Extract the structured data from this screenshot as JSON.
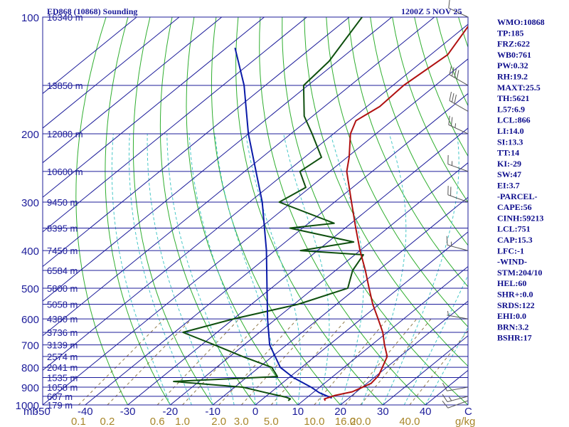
{
  "header": {
    "station": "ED868 (10868) Sounding",
    "time": "1200Z  5 NOV 25"
  },
  "indices": [
    "WMO:10868",
    "TP:185",
    "FRZ:622",
    "WB0:761",
    "PW:0.32",
    "RH:19.2",
    "MAXT:25.5",
    "TH:5621",
    "L57:6.9",
    "LCL:866",
    "LI:14.0",
    "SI:13.3",
    "TT:14",
    "KI:-29",
    "SW:47",
    "EI:3.7",
    "-PARCEL-",
    "CAPE:56",
    "CINH:59213",
    "LCL:751",
    "CAP:15.3",
    "LFC:-1",
    "-WIND-",
    "STM:204/10",
    "HEL:60",
    "SHR+:0.0",
    "SRDS:122",
    "EHI:0.0",
    "BRN:3.2",
    "BSHR:17"
  ],
  "colors": {
    "isobar": "#1c1c9a",
    "isotherm": "#1c1c9a",
    "dry_adiabat": "#2fae2f",
    "moist_adiabat": "#47c7c7",
    "mixing_ratio": "#8f7a4a",
    "temperature": "#b01010",
    "dewpoint": "#0e4f0e",
    "parcel": "#0a1aa8",
    "wind": "#555555",
    "label": "#1c1c9a",
    "mixing_label": "#a8862a"
  },
  "chart_data": {
    "type": "skew-t log-p sounding",
    "xlabel": "C",
    "unit_label": "mb",
    "mixing_unit": "g/kg",
    "xlim": [
      -50,
      50
    ],
    "ylim_hpa": [
      1000,
      100
    ],
    "temperature_ticks": [
      "-50",
      "-40",
      "-30",
      "-20",
      "-10",
      "0",
      "10",
      "20",
      "30",
      "40"
    ],
    "mixing_ticks": [
      "0.1",
      "0.2",
      "0.6",
      "1.0",
      "2.0",
      "3.0",
      "5.0",
      "10.0",
      "16.0",
      "20.0",
      "40.0"
    ],
    "pressure_levels": [
      {
        "p": 100,
        "label": "100",
        "height": "16340 m"
      },
      {
        "p": 150,
        "label": "",
        "height": "13850 m"
      },
      {
        "p": 200,
        "label": "200",
        "height": "12080 m"
      },
      {
        "p": 250,
        "label": "",
        "height": "10600 m"
      },
      {
        "p": 300,
        "label": "300",
        "height": "9450 m"
      },
      {
        "p": 350,
        "label": "",
        "height": "8395 m"
      },
      {
        "p": 400,
        "label": "400",
        "height": "7450 m"
      },
      {
        "p": 450,
        "label": "",
        "height": "6584 m"
      },
      {
        "p": 500,
        "label": "500",
        "height": "5800 m"
      },
      {
        "p": 550,
        "label": "",
        "height": "5058 m"
      },
      {
        "p": 600,
        "label": "600",
        "height": "4380 m"
      },
      {
        "p": 650,
        "label": "",
        "height": "3736 m"
      },
      {
        "p": 700,
        "label": "700",
        "height": "3139 m"
      },
      {
        "p": 750,
        "label": "",
        "height": "2574 m"
      },
      {
        "p": 800,
        "label": "800",
        "height": "2041 m"
      },
      {
        "p": 850,
        "label": "",
        "height": "1535 m"
      },
      {
        "p": 900,
        "label": "900",
        "height": "1058 m"
      },
      {
        "p": 950,
        "label": "",
        "height": "607 m"
      },
      {
        "p": 1000,
        "label": "1000",
        "height": "179 m"
      }
    ],
    "temperature": [
      {
        "p": 975,
        "t": 15.2
      },
      {
        "p": 965,
        "t": 14.5
      },
      {
        "p": 945,
        "t": 16.0
      },
      {
        "p": 925,
        "t": 19.0
      },
      {
        "p": 880,
        "t": 21.0
      },
      {
        "p": 840,
        "t": 20.5
      },
      {
        "p": 800,
        "t": 19.0
      },
      {
        "p": 750,
        "t": 17.0
      },
      {
        "p": 700,
        "t": 13.0
      },
      {
        "p": 650,
        "t": 9.0
      },
      {
        "p": 600,
        "t": 4.0
      },
      {
        "p": 550,
        "t": -1.5
      },
      {
        "p": 500,
        "t": -7.0
      },
      {
        "p": 450,
        "t": -13.0
      },
      {
        "p": 400,
        "t": -20.0
      },
      {
        "p": 350,
        "t": -27.5
      },
      {
        "p": 300,
        "t": -36.0
      },
      {
        "p": 250,
        "t": -46.0
      },
      {
        "p": 230,
        "t": -49.5
      },
      {
        "p": 200,
        "t": -56.0
      },
      {
        "p": 185,
        "t": -58.5
      },
      {
        "p": 170,
        "t": -57.0
      },
      {
        "p": 150,
        "t": -57.5
      },
      {
        "p": 125,
        "t": -56.0
      },
      {
        "p": 100,
        "t": -60.5
      }
    ],
    "dewpoint": [
      {
        "p": 975,
        "t": 6.5
      },
      {
        "p": 965,
        "t": 6.5
      },
      {
        "p": 955,
        "t": 5.0
      },
      {
        "p": 930,
        "t": -1.0
      },
      {
        "p": 900,
        "t": -8.0
      },
      {
        "p": 870,
        "t": -26.0
      },
      {
        "p": 845,
        "t": -3.0
      },
      {
        "p": 800,
        "t": -7.0
      },
      {
        "p": 750,
        "t": -17.0
      },
      {
        "p": 700,
        "t": -27.0
      },
      {
        "p": 650,
        "t": -38.0
      },
      {
        "p": 600,
        "t": -30.0
      },
      {
        "p": 550,
        "t": -19.0
      },
      {
        "p": 500,
        "t": -12.0
      },
      {
        "p": 450,
        "t": -16.0
      },
      {
        "p": 410,
        "t": -18.0
      },
      {
        "p": 400,
        "t": -34.0
      },
      {
        "p": 380,
        "t": -24.0
      },
      {
        "p": 350,
        "t": -43.0
      },
      {
        "p": 340,
        "t": -34.0
      },
      {
        "p": 300,
        "t": -53.0
      },
      {
        "p": 275,
        "t": -51.0
      },
      {
        "p": 250,
        "t": -57.0
      },
      {
        "p": 230,
        "t": -56.0
      },
      {
        "p": 200,
        "t": -65.0
      },
      {
        "p": 180,
        "t": -72.0
      },
      {
        "p": 150,
        "t": -81.0
      },
      {
        "p": 130,
        "t": -82.0
      },
      {
        "p": 100,
        "t": -87.0
      }
    ],
    "parcel": [
      {
        "p": 960,
        "t": 16.0
      },
      {
        "p": 930,
        "t": 11.5
      },
      {
        "p": 900,
        "t": 8.0
      },
      {
        "p": 850,
        "t": 1.0
      },
      {
        "p": 800,
        "t": -5.0
      },
      {
        "p": 700,
        "t": -14.0
      },
      {
        "p": 600,
        "t": -22.0
      },
      {
        "p": 500,
        "t": -31.0
      },
      {
        "p": 400,
        "t": -42.0
      },
      {
        "p": 300,
        "t": -57.0
      },
      {
        "p": 200,
        "t": -80.0
      },
      {
        "p": 150,
        "t": -95.0
      },
      {
        "p": 120,
        "t": -108.0
      }
    ],
    "wind_barbs": [
      {
        "p": 975,
        "dir": 250,
        "kt": 10
      },
      {
        "p": 950,
        "dir": 255,
        "kt": 15
      },
      {
        "p": 900,
        "dir": 260,
        "kt": 10
      },
      {
        "p": 600,
        "dir": 280,
        "kt": 5
      },
      {
        "p": 400,
        "dir": 285,
        "kt": 15
      },
      {
        "p": 300,
        "dir": 290,
        "kt": 20
      },
      {
        "p": 250,
        "dir": 290,
        "kt": 15
      },
      {
        "p": 200,
        "dir": 295,
        "kt": 25
      },
      {
        "p": 175,
        "dir": 300,
        "kt": 30
      },
      {
        "p": 150,
        "dir": 300,
        "kt": 40
      },
      {
        "p": 100,
        "dir": 295,
        "kt": 10
      }
    ]
  }
}
